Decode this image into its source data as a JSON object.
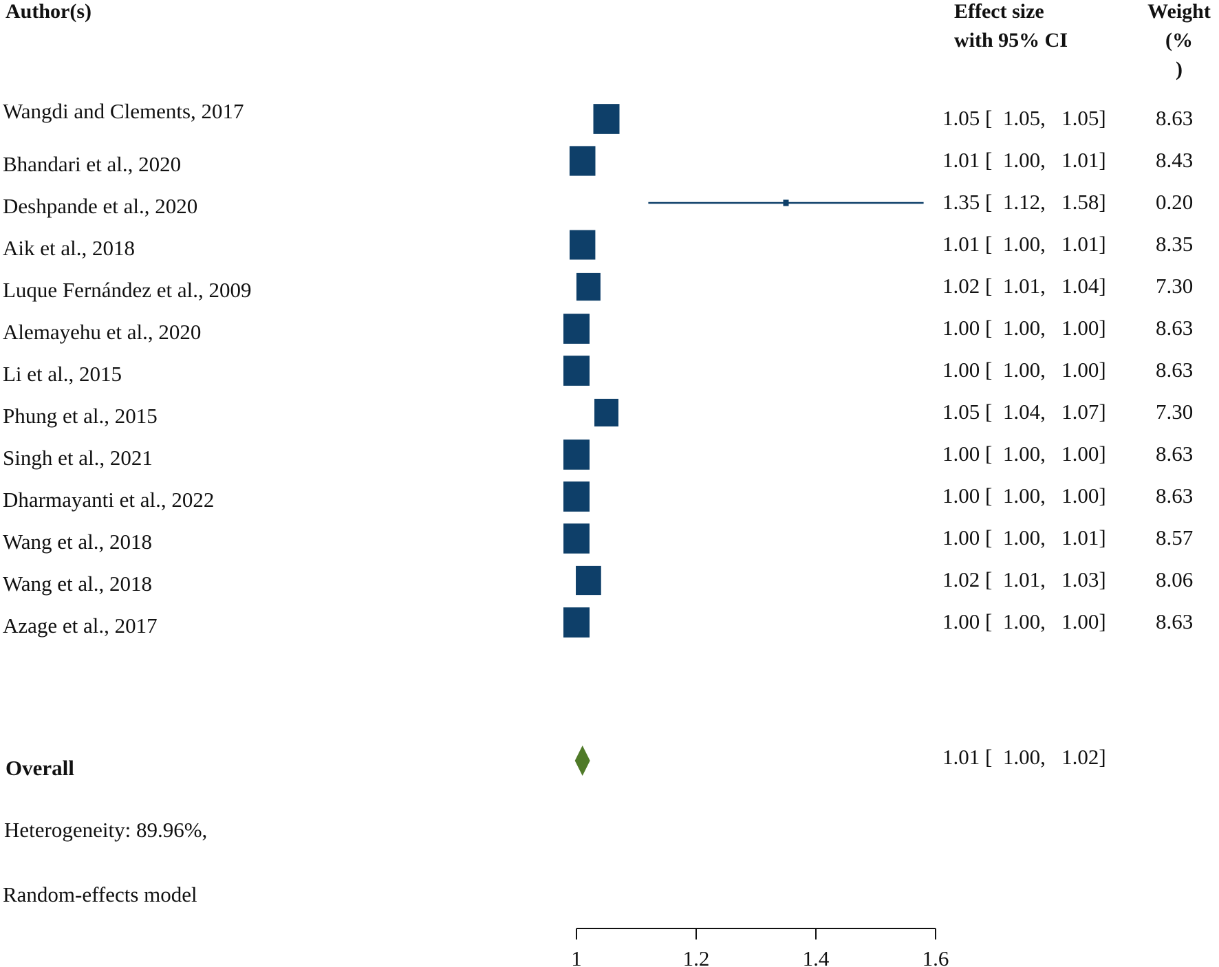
{
  "headers": {
    "author": "Author(s)",
    "effect_line1": "Effect size",
    "effect_line2": "with 95% CI",
    "weight_line1": "Weight",
    "weight_line2": "(%",
    "weight_line3": ")"
  },
  "colors": {
    "study_marker": "#0e3f69",
    "overall_diamond": "#4f7a28",
    "text": "#111111"
  },
  "studies": [
    {
      "author": "Wangdi and Clements, 2017",
      "ci_text": "1.05 [  1.05,   1.05]",
      "weight": "8.63"
    },
    {
      "author": "Bhandari et al., 2020",
      "ci_text": "1.01 [  1.00,   1.01]",
      "weight": "8.43"
    },
    {
      "author": "Deshpande et al., 2020",
      "ci_text": "1.35 [  1.12,   1.58]",
      "weight": "0.20"
    },
    {
      "author": "Aik et al., 2018",
      "ci_text": "1.01 [  1.00,   1.01]",
      "weight": "8.35"
    },
    {
      "author": "Luque Fernández et al., 2009",
      "ci_text": "1.02 [  1.01,   1.04]",
      "weight": "7.30"
    },
    {
      "author": "Alemayehu et al., 2020",
      "ci_text": "1.00 [  1.00,   1.00]",
      "weight": "8.63"
    },
    {
      "author": "Li et al., 2015",
      "ci_text": "1.00 [  1.00,   1.00]",
      "weight": "8.63"
    },
    {
      "author": "Phung et al., 2015",
      "ci_text": "1.05 [  1.04,   1.07]",
      "weight": "7.30"
    },
    {
      "author": "Singh et al., 2021",
      "ci_text": "1.00 [  1.00,   1.00]",
      "weight": "8.63"
    },
    {
      "author": "Dharmayanti et al., 2022",
      "ci_text": "1.00 [  1.00,   1.00]",
      "weight": "8.63"
    },
    {
      "author": "Wang et al., 2018",
      "ci_text": "1.00 [  1.00,   1.01]",
      "weight": "8.57"
    },
    {
      "author": "Wang et al., 2018",
      "ci_text": "1.02 [  1.01,   1.03]",
      "weight": "8.06"
    },
    {
      "author": "Azage et al., 2017",
      "ci_text": "1.00 [  1.00,   1.00]",
      "weight": "8.63"
    }
  ],
  "overall": {
    "label": "Overall",
    "ci_text": "1.01 [  1.00,   1.02]"
  },
  "footer": {
    "heterogeneity": "Heterogeneity: 89.96%,",
    "model": "Random-effects model"
  },
  "chart_data": {
    "type": "forest",
    "x_axis": {
      "min": 1,
      "max": 1.6,
      "ticks": [
        1,
        1.2,
        1.4,
        1.6
      ],
      "tick_labels": [
        "1",
        "1.2",
        "1.4",
        "1.6"
      ]
    },
    "studies": [
      {
        "name": "Wangdi and Clements, 2017",
        "effect": 1.05,
        "lower": 1.05,
        "upper": 1.05,
        "weight": 8.63
      },
      {
        "name": "Bhandari et al., 2020",
        "effect": 1.01,
        "lower": 1.0,
        "upper": 1.01,
        "weight": 8.43
      },
      {
        "name": "Deshpande et al., 2020",
        "effect": 1.35,
        "lower": 1.12,
        "upper": 1.58,
        "weight": 0.2
      },
      {
        "name": "Aik et al., 2018",
        "effect": 1.01,
        "lower": 1.0,
        "upper": 1.01,
        "weight": 8.35
      },
      {
        "name": "Luque Fernández et al., 2009",
        "effect": 1.02,
        "lower": 1.01,
        "upper": 1.04,
        "weight": 7.3
      },
      {
        "name": "Alemayehu et al., 2020",
        "effect": 1.0,
        "lower": 1.0,
        "upper": 1.0,
        "weight": 8.63
      },
      {
        "name": "Li et al., 2015",
        "effect": 1.0,
        "lower": 1.0,
        "upper": 1.0,
        "weight": 8.63
      },
      {
        "name": "Phung et al., 2015",
        "effect": 1.05,
        "lower": 1.04,
        "upper": 1.07,
        "weight": 7.3
      },
      {
        "name": "Singh et al., 2021",
        "effect": 1.0,
        "lower": 1.0,
        "upper": 1.0,
        "weight": 8.63
      },
      {
        "name": "Dharmayanti et al., 2022",
        "effect": 1.0,
        "lower": 1.0,
        "upper": 1.0,
        "weight": 8.63
      },
      {
        "name": "Wang et al., 2018",
        "effect": 1.0,
        "lower": 1.0,
        "upper": 1.01,
        "weight": 8.57
      },
      {
        "name": "Wang et al., 2018",
        "effect": 1.02,
        "lower": 1.01,
        "upper": 1.03,
        "weight": 8.06
      },
      {
        "name": "Azage et al., 2017",
        "effect": 1.0,
        "lower": 1.0,
        "upper": 1.0,
        "weight": 8.63
      }
    ],
    "overall": {
      "effect": 1.01,
      "lower": 1.0,
      "upper": 1.02
    },
    "grid": false
  }
}
